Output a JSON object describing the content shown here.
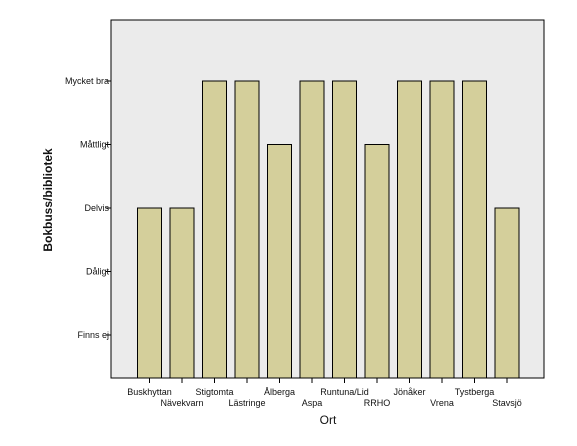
{
  "chart_data": {
    "type": "bar",
    "xlabel": "Ort",
    "ylabel": "Bokbuss/bibliotek",
    "y_levels": [
      "Finns ej",
      "Dåligt",
      "Delvis",
      "Måttligt",
      "Mycket bra"
    ],
    "y_scale_note": "ordinal levels: 1=Finns ej, 2=Dåligt, 3=Delvis, 4=Måttligt, 5=Mycket bra",
    "categories": [
      "Buskhyttan",
      "Nävekvarn",
      "Stigtomta",
      "Lästringe",
      "Ålberga",
      "Aspa",
      "Runtuna/Lid",
      "RRHO",
      "Jönåker",
      "Vrena",
      "Tystberga",
      "Stavsjö"
    ],
    "values": [
      3,
      3,
      5,
      5,
      4,
      5,
      5,
      4,
      5,
      5,
      5,
      3
    ],
    "ylim": [
      0,
      5.5
    ],
    "grid": false,
    "legend": "none",
    "colors": {
      "plot_background": "#ebebeb",
      "bar_fill": "#d4cf9b",
      "bar_stroke": "#000000",
      "page_background": "#ffffff"
    }
  }
}
